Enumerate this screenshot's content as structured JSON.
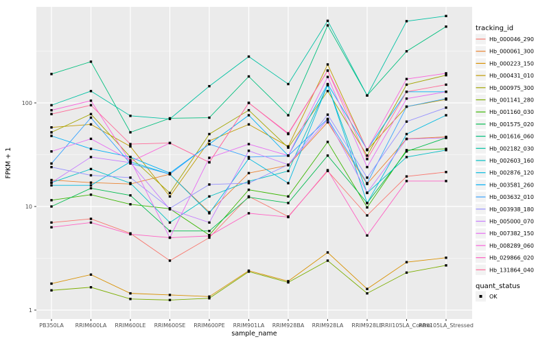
{
  "figure": {
    "x_axis_title": "sample_name",
    "y_axis_title": "FPKM + 1",
    "legend_tracking_title": "tracking_id",
    "legend_quant_title": "quant_status",
    "legend_quant_ok_label": "OK",
    "panel_bg_color": "#EBEBEB",
    "grid_color": "#FFFFFF",
    "legend_key_bg_color": "#F2F2F2",
    "point_color": "#000000",
    "tick_text_color": "#4D4D4D"
  },
  "chart_data": {
    "type": "line",
    "title": "",
    "xlabel": "sample_name",
    "ylabel": "FPKM + 1",
    "yscale": "log10",
    "ylim": [
      1,
      700
    ],
    "y_major_ticks": [
      1,
      10,
      100
    ],
    "y_tick_labels": [
      "1",
      "10",
      "100"
    ],
    "y_minor_gridlines": [
      3.162,
      31.62,
      316.2
    ],
    "grid": true,
    "legend_position": "right",
    "point_shape": "filled-square",
    "quant_status_items": [
      {
        "label": "OK"
      }
    ],
    "categories": [
      "PB350LA",
      "RRIM600LA",
      "RRIM600LE",
      "RRIM600SE",
      "RRIM600PE",
      "RRIM901LA",
      "RRIM928BA",
      "RRIM928LA",
      "RRIM928LE",
      "RRII105LA_Control",
      "RRII105LA_Stressed"
    ],
    "series": [
      {
        "name": "Hb_000046_290",
        "color": "#F8766D",
        "values": [
          7.0,
          7.6,
          5.5,
          3.0,
          5.0,
          12.5,
          8.0,
          22,
          8.2,
          19.5,
          21.5
        ]
      },
      {
        "name": "Hb_000061_300",
        "color": "#EA8331",
        "values": [
          18,
          17,
          16.5,
          20.5,
          8.8,
          21,
          25,
          65,
          16.5,
          45,
          47
        ]
      },
      {
        "name": "Hb_000223_150",
        "color": "#D89000",
        "values": [
          1.8,
          2.2,
          1.45,
          1.4,
          1.35,
          2.4,
          1.9,
          3.6,
          1.6,
          2.9,
          3.2
        ]
      },
      {
        "name": "Hb_000431_010",
        "color": "#C09B00",
        "values": [
          58,
          62,
          38,
          12.5,
          43,
          62,
          38,
          235,
          35,
          92,
          108
        ]
      },
      {
        "name": "Hb_000975_300",
        "color": "#A3A500",
        "values": [
          52,
          78,
          30,
          13.5,
          50,
          85,
          37,
          130,
          31,
          150,
          185
        ]
      },
      {
        "name": "Hb_001141_280",
        "color": "#7CAE00",
        "values": [
          1.55,
          1.66,
          1.28,
          1.25,
          1.3,
          2.35,
          1.85,
          3.0,
          1.45,
          2.3,
          2.7
        ]
      },
      {
        "name": "Hb_001160_030",
        "color": "#39B600",
        "values": [
          11.5,
          13,
          10.5,
          9.5,
          5.3,
          14.5,
          12.5,
          42,
          9.8,
          35,
          36
        ]
      },
      {
        "name": "Hb_001575_020",
        "color": "#00BB4E",
        "values": [
          10,
          15,
          12.8,
          5.8,
          5.8,
          12.3,
          10.8,
          31,
          10.8,
          34,
          46
        ]
      },
      {
        "name": "Hb_001616_060",
        "color": "#00BF7D",
        "values": [
          190,
          250,
          52,
          71,
          72,
          180,
          76,
          560,
          118,
          315,
          545
        ]
      },
      {
        "name": "Hb_002182_030",
        "color": "#00C1A3",
        "values": [
          95,
          130,
          75,
          70,
          145,
          280,
          152,
          620,
          118,
          615,
          690
        ]
      },
      {
        "name": "Hb_002603_160",
        "color": "#00BFC4",
        "values": [
          17,
          23,
          16.8,
          7.0,
          12.5,
          17.5,
          22,
          148,
          13.5,
          30,
          35
        ]
      },
      {
        "name": "Hb_002876_120",
        "color": "#00BAE0",
        "values": [
          16,
          16,
          27,
          20.5,
          8.6,
          29,
          16.8,
          150,
          10.8,
          50,
          76
        ]
      },
      {
        "name": "Hb_003581_260",
        "color": "#00B0F6",
        "values": [
          48,
          36,
          30,
          21,
          40,
          76,
          31,
          152,
          35.5,
          128,
          128
        ]
      },
      {
        "name": "Hb_003632_010",
        "color": "#35A2FF",
        "values": [
          26,
          72,
          26,
          20.5,
          40,
          30,
          30.9,
          70,
          16.8,
          92,
          110
        ]
      },
      {
        "name": "Hb_003938_180",
        "color": "#9590FF",
        "values": [
          24,
          20,
          19,
          9.6,
          16.3,
          16.8,
          25.3,
          77,
          19,
          66,
          90
        ]
      },
      {
        "name": "Hb_005000_070",
        "color": "#C57CFF",
        "values": [
          17,
          30,
          26.5,
          9.4,
          7.0,
          34.5,
          25.3,
          69,
          13.6,
          44.8,
          46
        ]
      },
      {
        "name": "Hb_007382_150",
        "color": "#E76BF3",
        "values": [
          34,
          45,
          28,
          5.0,
          29.5,
          40,
          31,
          178,
          24,
          110,
          128
        ]
      },
      {
        "name": "Hb_008289_060",
        "color": "#FA62DB",
        "values": [
          85,
          105,
          27,
          41,
          26.7,
          100,
          50,
          205,
          35.3,
          170,
          193
        ]
      },
      {
        "name": "Hb_029866_020",
        "color": "#FF61C3",
        "values": [
          6.3,
          7.0,
          5.4,
          5.0,
          5.2,
          8.6,
          7.9,
          22.4,
          5.25,
          17.6,
          17.6
        ]
      },
      {
        "name": "Hb_131864_040",
        "color": "#FF6A98",
        "values": [
          78,
          95,
          40,
          41,
          26.7,
          100,
          50.8,
          205,
          28.7,
          128,
          150
        ]
      }
    ]
  }
}
